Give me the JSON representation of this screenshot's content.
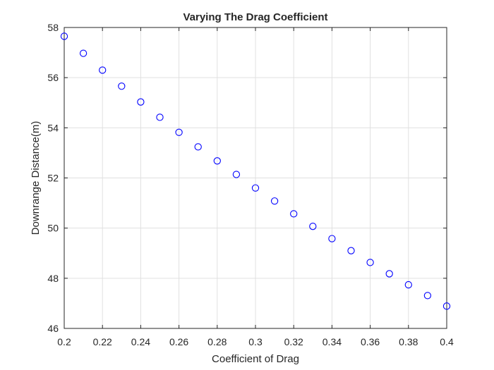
{
  "chart_data": {
    "type": "scatter",
    "title": "Varying The Drag Coefficient",
    "xlabel": "Coefficient of Drag",
    "ylabel": "Downrange Distance(m)",
    "xlim": [
      0.2,
      0.4
    ],
    "ylim": [
      46,
      58
    ],
    "xticks": [
      "0.2",
      "0.22",
      "0.24",
      "0.26",
      "0.28",
      "0.3",
      "0.32",
      "0.34",
      "0.36",
      "0.38",
      "0.4"
    ],
    "yticks": [
      "46",
      "48",
      "50",
      "52",
      "54",
      "56",
      "58"
    ],
    "grid": true,
    "marker": "open-circle",
    "colors": {
      "marker": "#0000ff",
      "grid": "#e0e0e0",
      "axis": "#262626"
    },
    "series": [
      {
        "x": [
          0.2,
          0.21,
          0.22,
          0.23,
          0.24,
          0.25,
          0.26,
          0.27,
          0.28,
          0.29,
          0.3,
          0.31,
          0.32,
          0.33,
          0.34,
          0.35,
          0.36,
          0.37,
          0.38,
          0.39,
          0.4
        ],
        "y": [
          57.65,
          56.97,
          56.3,
          55.66,
          55.03,
          54.42,
          53.82,
          53.24,
          52.68,
          52.14,
          51.6,
          51.08,
          50.57,
          50.07,
          49.58,
          49.1,
          48.63,
          48.18,
          47.74,
          47.31,
          46.89
        ]
      }
    ]
  }
}
